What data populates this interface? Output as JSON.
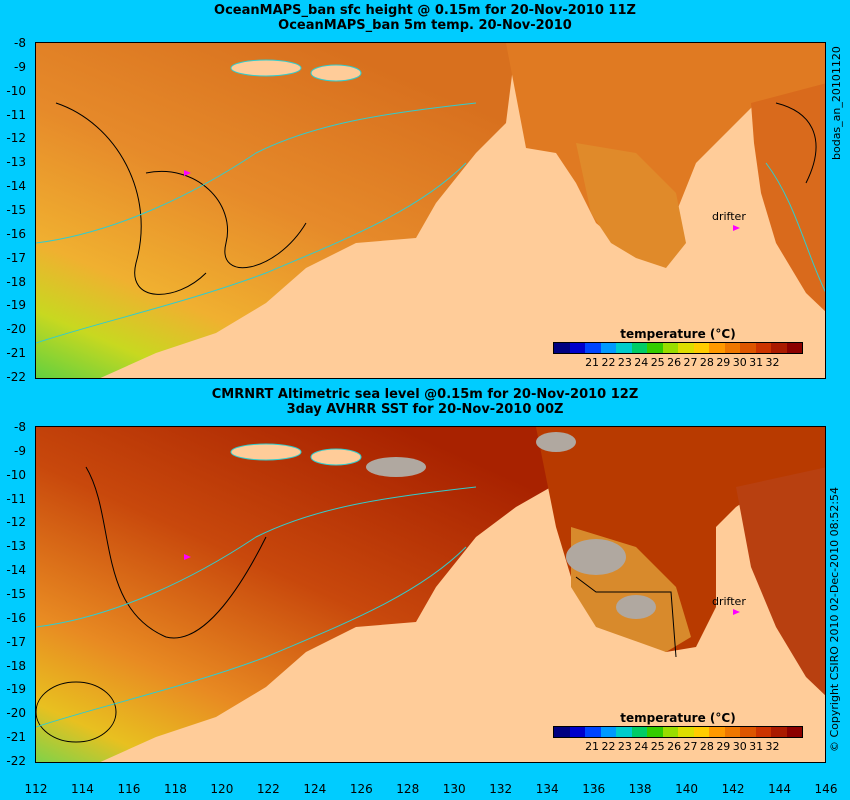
{
  "panel1": {
    "title1": "OceanMAPS_ban sfc height @ 0.15m for 20-Nov-2010 11Z",
    "title2": "OceanMAPS_ban 5m temp. 20-Nov-2010",
    "side_text": "bodas_an_20101120",
    "legend_title": "temperature (°C)",
    "drifter": "drifter"
  },
  "panel2": {
    "title1": "CMRNRT Altimetric sea level  @0.15m  for 20-Nov-2010 12Z",
    "title2": "3day AVHRR SST for 20-Nov-2010 00Z",
    "side_text": "© Copyright CSIRO 2010  02-Dec-2010 08:52:54",
    "legend_title": "temperature (°C)",
    "drifter": "drifter"
  },
  "y_ticks": [
    "-8",
    "-9",
    "-10",
    "-11",
    "-12",
    "-13",
    "-14",
    "-15",
    "-16",
    "-17",
    "-18",
    "-19",
    "-20",
    "-21",
    "-22"
  ],
  "x_ticks": [
    "112",
    "114",
    "116",
    "118",
    "120",
    "122",
    "124",
    "126",
    "128",
    "130",
    "132",
    "134",
    "136",
    "138",
    "140",
    "142",
    "144",
    "146"
  ],
  "legend_labels": [
    "21",
    "22",
    "23",
    "24",
    "25",
    "26",
    "27",
    "28",
    "29",
    "30",
    "31",
    "32"
  ],
  "legend_colors": [
    "#000080",
    "#0000cc",
    "#0044ff",
    "#0099ff",
    "#00cccc",
    "#00cc66",
    "#33cc00",
    "#99dd00",
    "#dddd00",
    "#ffcc00",
    "#ff9900",
    "#ee7700",
    "#dd5500",
    "#cc3300",
    "#aa1a00",
    "#8b0000"
  ],
  "colors": {
    "background": "#00ccff",
    "land": "#ffcc99",
    "ocean_warm": "#e08a2a",
    "ocean_hot": "#b83a00",
    "cool": "#7cd34a",
    "contour_cyan": "#33cccc",
    "contour_black": "#000000",
    "drifter": "#ff00ff",
    "cloud": "#b0a8a0"
  }
}
